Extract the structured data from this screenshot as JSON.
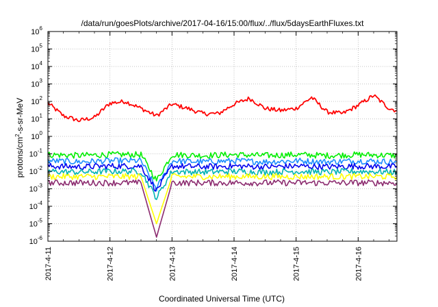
{
  "chart_data": {
    "type": "line",
    "title": "/data/run/goesPlots/archive/2017-04-16/15:00/flux/../flux/5daysEarthFluxes.txt",
    "xlabel": "Coordinated Universal Time (UTC)",
    "ylabel_parts": [
      "protons/cm",
      "2",
      "-s-sr-MeV"
    ],
    "y_scale": "log",
    "ylim": [
      1e-06,
      1000000.0
    ],
    "y_ticks": [
      {
        "base": "10",
        "exp": "-6",
        "value": 1e-06
      },
      {
        "base": "10",
        "exp": "-5",
        "value": 1e-05
      },
      {
        "base": "10",
        "exp": "-4",
        "value": 0.0001
      },
      {
        "base": "10",
        "exp": "-3",
        "value": 0.001
      },
      {
        "base": "10",
        "exp": "-2",
        "value": 0.01
      },
      {
        "base": "10",
        "exp": "-1",
        "value": 0.1
      },
      {
        "base": "10",
        "exp": "0",
        "value": 1
      },
      {
        "base": "10",
        "exp": "1",
        "value": 10
      },
      {
        "base": "10",
        "exp": "2",
        "value": 100
      },
      {
        "base": "10",
        "exp": "3",
        "value": 1000
      },
      {
        "base": "10",
        "exp": "4",
        "value": 10000
      },
      {
        "base": "10",
        "exp": "5",
        "value": 100000
      },
      {
        "base": "10",
        "exp": "6",
        "value": 1000000
      }
    ],
    "xlim": [
      "2017-04-11",
      "2017-04-16T15:00"
    ],
    "x_ticks": [
      "2017-4-11",
      "2017-4-12",
      "2017-4-13",
      "2017-4-14",
      "2017-4-15",
      "2017-4-16"
    ],
    "grid": true,
    "legend": "none",
    "series": [
      {
        "color": "#ff0000",
        "x": [
          "2017-04-11T00:00",
          "2017-04-11T06:00",
          "2017-04-11T12:00",
          "2017-04-11T18:00",
          "2017-04-12T00:00",
          "2017-04-12T06:00",
          "2017-04-12T12:00",
          "2017-04-12T18:00",
          "2017-04-13T00:00",
          "2017-04-13T06:00",
          "2017-04-13T12:00",
          "2017-04-13T18:00",
          "2017-04-14T00:00",
          "2017-04-14T06:00",
          "2017-04-14T12:00",
          "2017-04-14T18:00",
          "2017-04-15T00:00",
          "2017-04-15T06:00",
          "2017-04-15T12:00",
          "2017-04-15T18:00",
          "2017-04-16T00:00",
          "2017-04-16T06:00",
          "2017-04-16T12:00",
          "2017-04-16T15:00"
        ],
        "values": [
          80,
          15,
          8,
          12,
          80,
          100,
          40,
          15,
          70,
          40,
          20,
          20,
          70,
          150,
          40,
          30,
          40,
          170,
          25,
          20,
          60,
          220,
          40,
          30
        ]
      },
      {
        "color": "#00ee00",
        "x": [
          "2017-04-11T00:00",
          "2017-04-11T12:00",
          "2017-04-12T00:00",
          "2017-04-12T12:00",
          "2017-04-12T18:00",
          "2017-04-13T00:00",
          "2017-04-13T12:00",
          "2017-04-14T00:00",
          "2017-04-14T12:00",
          "2017-04-15T00:00",
          "2017-04-15T12:00",
          "2017-04-16T00:00",
          "2017-04-16T15:00"
        ],
        "values": [
          0.09,
          0.08,
          0.09,
          0.09,
          0.003,
          0.09,
          0.08,
          0.09,
          0.08,
          0.09,
          0.08,
          0.09,
          0.08
        ]
      },
      {
        "color": "#1a8cff",
        "x": [
          "2017-04-11T00:00",
          "2017-04-11T12:00",
          "2017-04-12T00:00",
          "2017-04-12T12:00",
          "2017-04-12T18:00",
          "2017-04-13T00:00",
          "2017-04-13T12:00",
          "2017-04-14T00:00",
          "2017-04-14T12:00",
          "2017-04-15T00:00",
          "2017-04-15T12:00",
          "2017-04-16T00:00",
          "2017-04-16T15:00"
        ],
        "values": [
          0.04,
          0.035,
          0.04,
          0.04,
          0.001,
          0.04,
          0.035,
          0.04,
          0.035,
          0.04,
          0.035,
          0.04,
          0.035
        ]
      },
      {
        "color": "#0000ee",
        "x": [
          "2017-04-11T00:00",
          "2017-04-11T12:00",
          "2017-04-12T00:00",
          "2017-04-12T12:00",
          "2017-04-12T18:00",
          "2017-04-13T00:00",
          "2017-04-13T12:00",
          "2017-04-14T00:00",
          "2017-04-14T12:00",
          "2017-04-15T00:00",
          "2017-04-15T12:00",
          "2017-04-16T00:00",
          "2017-04-16T15:00"
        ],
        "values": [
          0.02,
          0.018,
          0.02,
          0.02,
          0.0008,
          0.02,
          0.018,
          0.02,
          0.018,
          0.02,
          0.018,
          0.02,
          0.018
        ]
      },
      {
        "color": "#00b3b3",
        "x": [
          "2017-04-11T00:00",
          "2017-04-11T12:00",
          "2017-04-12T00:00",
          "2017-04-12T12:00",
          "2017-04-12T18:00",
          "2017-04-13T00:00",
          "2017-04-13T12:00",
          "2017-04-14T00:00",
          "2017-04-14T12:00",
          "2017-04-15T00:00",
          "2017-04-15T12:00",
          "2017-04-16T00:00",
          "2017-04-16T15:00"
        ],
        "values": [
          0.01,
          0.009,
          0.01,
          0.01,
          0.0003,
          0.01,
          0.009,
          0.01,
          0.009,
          0.01,
          0.009,
          0.01,
          0.009
        ]
      },
      {
        "color": "#ffff00",
        "x": [
          "2017-04-11T00:00",
          "2017-04-11T12:00",
          "2017-04-12T00:00",
          "2017-04-12T12:00",
          "2017-04-12T18:00",
          "2017-04-13T00:00",
          "2017-04-13T12:00",
          "2017-04-14T00:00",
          "2017-04-14T12:00",
          "2017-04-15T00:00",
          "2017-04-15T12:00",
          "2017-04-16T00:00",
          "2017-04-16T15:00"
        ],
        "values": [
          0.005,
          0.005,
          0.005,
          0.005,
          1e-05,
          0.005,
          0.005,
          0.005,
          0.005,
          0.005,
          0.005,
          0.005,
          0.005
        ]
      },
      {
        "color": "#8b2a6e",
        "x": [
          "2017-04-11T00:00",
          "2017-04-11T12:00",
          "2017-04-12T00:00",
          "2017-04-12T12:00",
          "2017-04-12T18:00",
          "2017-04-13T00:00",
          "2017-04-13T12:00",
          "2017-04-14T00:00",
          "2017-04-14T12:00",
          "2017-04-15T00:00",
          "2017-04-15T12:00",
          "2017-04-16T00:00",
          "2017-04-16T15:00"
        ],
        "values": [
          0.0022,
          0.0022,
          0.0022,
          0.0022,
          1.7e-06,
          0.0022,
          0.0022,
          0.0022,
          0.0022,
          0.0022,
          0.0022,
          0.0022,
          0.0022
        ]
      }
    ]
  }
}
